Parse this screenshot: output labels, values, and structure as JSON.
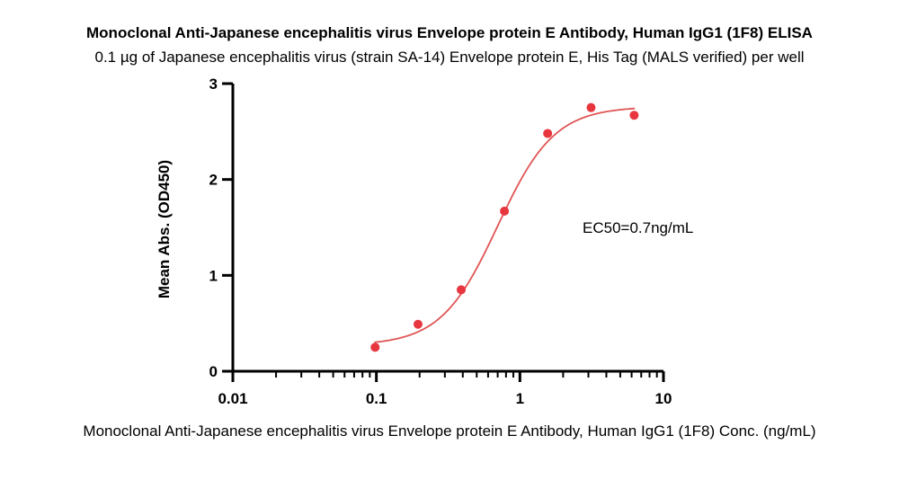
{
  "chart_data": {
    "type": "scatter",
    "title": "Monoclonal Anti-Japanese encephalitis virus Envelope protein E Antibody, Human IgG1 (1F8) ELISA",
    "subtitle": "0.1 µg of Japanese encephalitis virus (strain SA-14) Envelope protein E, His Tag (MALS verified) per well",
    "xlabel": "Monoclonal Anti-Japanese encephalitis virus Envelope protein E Antibody, Human IgG1 (1F8) Conc. (ng/mL)",
    "ylabel": "Mean Abs. (OD450)",
    "xscale": "log",
    "xlim": [
      0.01,
      10
    ],
    "ylim": [
      0,
      3
    ],
    "xticks": [
      0.01,
      0.1,
      1,
      10
    ],
    "xtick_labels": [
      "0.01",
      "0.1",
      "1",
      "10"
    ],
    "yticks": [
      0,
      1,
      2,
      3
    ],
    "ytick_labels": [
      "0",
      "1",
      "2",
      "3"
    ],
    "grid": false,
    "series": [
      {
        "points": [
          {
            "x": 0.098,
            "y": 0.25
          },
          {
            "x": 0.195,
            "y": 0.49
          },
          {
            "x": 0.39,
            "y": 0.85
          },
          {
            "x": 0.78,
            "y": 1.67
          },
          {
            "x": 1.56,
            "y": 2.48
          },
          {
            "x": 3.13,
            "y": 2.75
          },
          {
            "x": 6.25,
            "y": 2.67
          }
        ],
        "color": "#e8363f"
      }
    ],
    "fit": {
      "model": "4PL",
      "bottom": 0.27,
      "top": 2.76,
      "ec50": 0.7,
      "hill": 2.2,
      "x_range": [
        0.098,
        6.25
      ],
      "color": "#e05555"
    },
    "annotation": "EC50=0.7ng/mL"
  }
}
